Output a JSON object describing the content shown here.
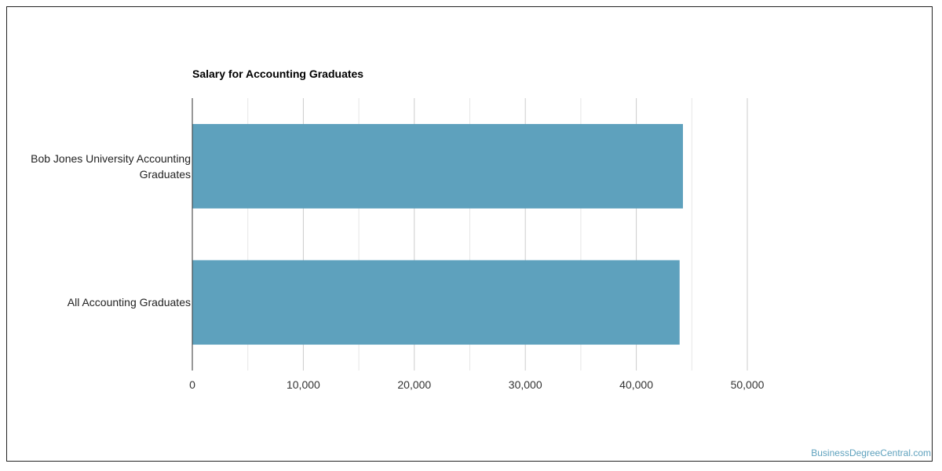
{
  "chart_data": {
    "type": "bar",
    "orientation": "horizontal",
    "title": "Salary for Accounting Graduates",
    "categories": [
      "Bob Jones University Accounting Graduates",
      "All Accounting Graduates"
    ],
    "category_label_lines": [
      [
        "Bob Jones University Accounting",
        "Graduates"
      ],
      [
        "All Accounting Graduates"
      ]
    ],
    "values": [
      44200,
      43900
    ],
    "xlim": [
      0,
      50000
    ],
    "x_ticks": [
      "0",
      "10,000",
      "20,000",
      "30,000",
      "40,000",
      "50,000"
    ],
    "x_tick_values": [
      0,
      10000,
      20000,
      30000,
      40000,
      50000
    ],
    "grid": true,
    "bar_color": "#5ea1bd",
    "legend": "none"
  },
  "watermark": "BusinessDegreeCentral.com"
}
